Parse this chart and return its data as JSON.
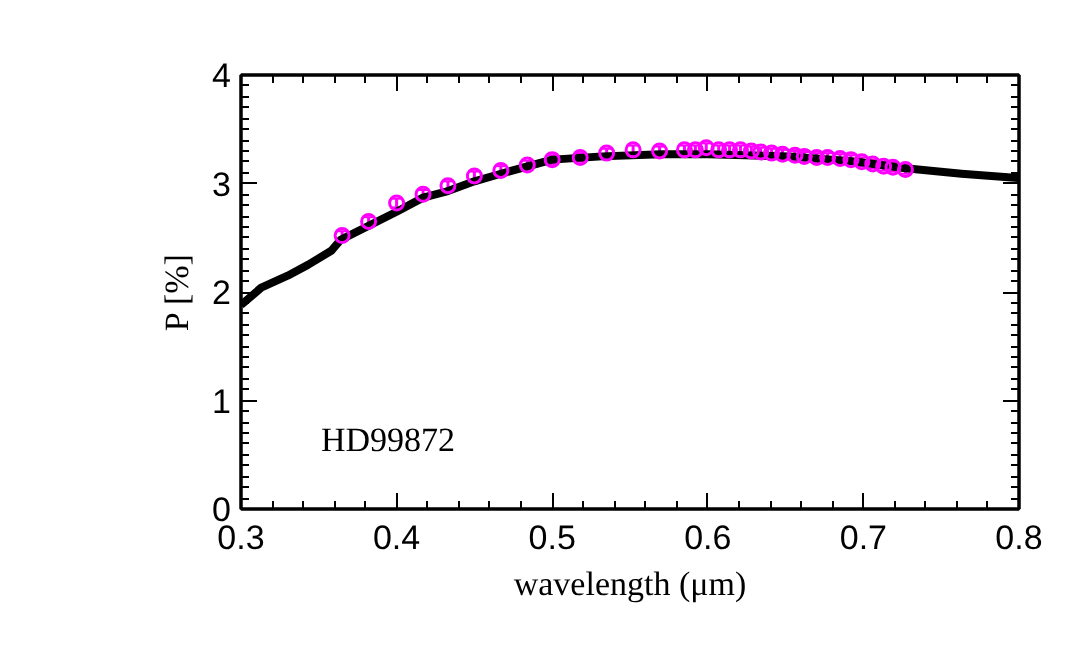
{
  "chart_data": {
    "type": "line",
    "xlabel": "wavelength (μm)",
    "ylabel": "P [%]",
    "annotations": [
      "HD99872"
    ],
    "xlim": [
      0.3,
      0.8
    ],
    "ylim": [
      0,
      4
    ],
    "xticks": [
      0.3,
      0.4,
      0.5,
      0.6,
      0.7,
      0.8
    ],
    "yticks": [
      0,
      1,
      2,
      3,
      4
    ],
    "grid": false,
    "series": [
      {
        "color": "#000000",
        "marker": "none",
        "line_style": "solid",
        "x": [
          0.3,
          0.313,
          0.33,
          0.343,
          0.358,
          0.364,
          0.4,
          0.417,
          0.433,
          0.45,
          0.467,
          0.5,
          0.532,
          0.57,
          0.6,
          0.653,
          0.696,
          0.727,
          0.763,
          0.8
        ],
        "values": [
          1.88,
          2.04,
          2.15,
          2.25,
          2.38,
          2.48,
          2.74,
          2.87,
          2.93,
          3.02,
          3.09,
          3.22,
          3.25,
          3.27,
          3.27,
          3.25,
          3.2,
          3.14,
          3.09,
          3.05
        ]
      },
      {
        "type": "scatter",
        "color": "#ff00ff",
        "marker": "circle",
        "x": [
          0.365,
          0.382,
          0.4,
          0.417,
          0.433,
          0.45,
          0.467,
          0.484,
          0.5,
          0.518,
          0.535,
          0.552,
          0.569,
          0.585,
          0.592,
          0.599,
          0.607,
          0.614,
          0.621,
          0.628,
          0.634,
          0.641,
          0.648,
          0.656,
          0.662,
          0.67,
          0.677,
          0.685,
          0.692,
          0.699,
          0.706,
          0.713,
          0.719,
          0.727
        ],
        "values": [
          2.52,
          2.65,
          2.82,
          2.9,
          2.98,
          3.07,
          3.12,
          3.17,
          3.22,
          3.24,
          3.28,
          3.31,
          3.3,
          3.31,
          3.31,
          3.33,
          3.31,
          3.31,
          3.31,
          3.3,
          3.29,
          3.28,
          3.27,
          3.26,
          3.25,
          3.24,
          3.24,
          3.23,
          3.22,
          3.2,
          3.18,
          3.16,
          3.15,
          3.13
        ],
        "errors": [
          0.04,
          0.04,
          0.04,
          0.04,
          0.04,
          0.04,
          0.04,
          0.04,
          0.04,
          0.04,
          0.04,
          0.04,
          0.04,
          0.04,
          0.04,
          0.04,
          0.04,
          0.04,
          0.04,
          0.04,
          0.04,
          0.04,
          0.04,
          0.04,
          0.04,
          0.04,
          0.04,
          0.04,
          0.04,
          0.04,
          0.04,
          0.04,
          0.04,
          0.04
        ]
      }
    ]
  }
}
